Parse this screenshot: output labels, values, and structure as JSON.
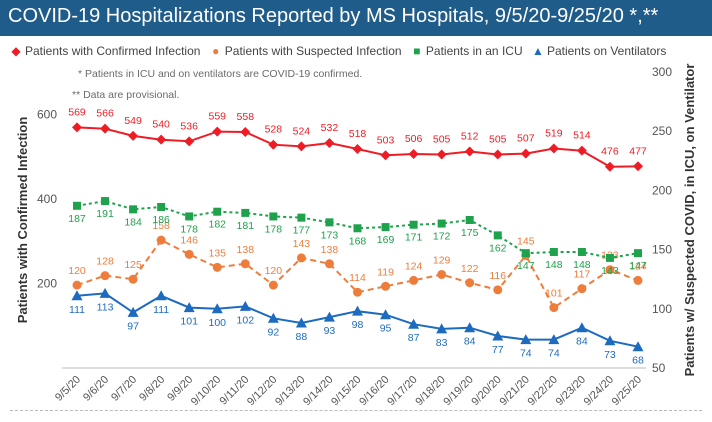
{
  "header": {
    "title": "COVID-19 Hospitalizations Reported by MS Hospitals, 9/5/20-9/25/20 *,**"
  },
  "notes": [
    "* Patients in ICU and on ventilators are COVID-19 confirmed.",
    "** Data are provisional."
  ],
  "colors": {
    "title_bg": "#1f5c8a",
    "confirmed": "#ee1c25",
    "suspected": "#ee7d3c",
    "icu": "#1ea24b",
    "vent": "#1d6bbf"
  },
  "chart_data": {
    "type": "line",
    "x": [
      "9/5/20",
      "9/6/20",
      "9/7/20",
      "9/8/20",
      "9/9/20",
      "9/10/20",
      "9/11/20",
      "9/12/20",
      "9/13/20",
      "9/14/20",
      "9/15/20",
      "9/16/20",
      "9/17/20",
      "9/18/20",
      "9/19/20",
      "9/20/20",
      "9/21/20",
      "9/22/20",
      "9/23/20",
      "9/24/20",
      "9/25/20"
    ],
    "ylabel_left": "Patients with Confirmed Infection",
    "ylabel_right": "Patients w/ Suspected COVID, in ICU, on Ventilator",
    "ylim_left": [
      0,
      700
    ],
    "yticks_left": [
      200,
      400,
      600
    ],
    "ylim_right": [
      50,
      300
    ],
    "yticks_right": [
      50,
      100,
      150,
      200,
      250,
      300
    ],
    "grid": false,
    "legend_position": "top",
    "series": [
      {
        "name": "Patients with Confirmed Infection",
        "axis": "left",
        "marker": "diamond",
        "line": "solid",
        "color": "#ee1c25",
        "values": [
          569,
          566,
          549,
          540,
          536,
          559,
          558,
          528,
          524,
          532,
          518,
          503,
          506,
          505,
          512,
          505,
          507,
          519,
          514,
          476,
          477
        ]
      },
      {
        "name": "Patients with Suspected Infection",
        "axis": "right",
        "marker": "circle",
        "line": "dashed",
        "color": "#ee7d3c",
        "values": [
          120,
          128,
          125,
          158,
          146,
          135,
          138,
          120,
          143,
          138,
          114,
          119,
          124,
          129,
          122,
          116,
          145,
          101,
          117,
          133,
          124
        ]
      },
      {
        "name": "Patients in an ICU",
        "axis": "right",
        "marker": "square",
        "line": "dotted",
        "color": "#1ea24b",
        "values": [
          187,
          191,
          184,
          186,
          178,
          182,
          181,
          178,
          177,
          173,
          168,
          169,
          171,
          172,
          175,
          162,
          147,
          148,
          148,
          143,
          147
        ]
      },
      {
        "name": "Patients on Ventilators",
        "axis": "right",
        "marker": "triangle",
        "line": "solid",
        "color": "#1d6bbf",
        "values": [
          111,
          113,
          97,
          111,
          101,
          100,
          102,
          92,
          88,
          93,
          98,
          95,
          87,
          83,
          84,
          77,
          74,
          74,
          84,
          73,
          68
        ]
      }
    ]
  }
}
